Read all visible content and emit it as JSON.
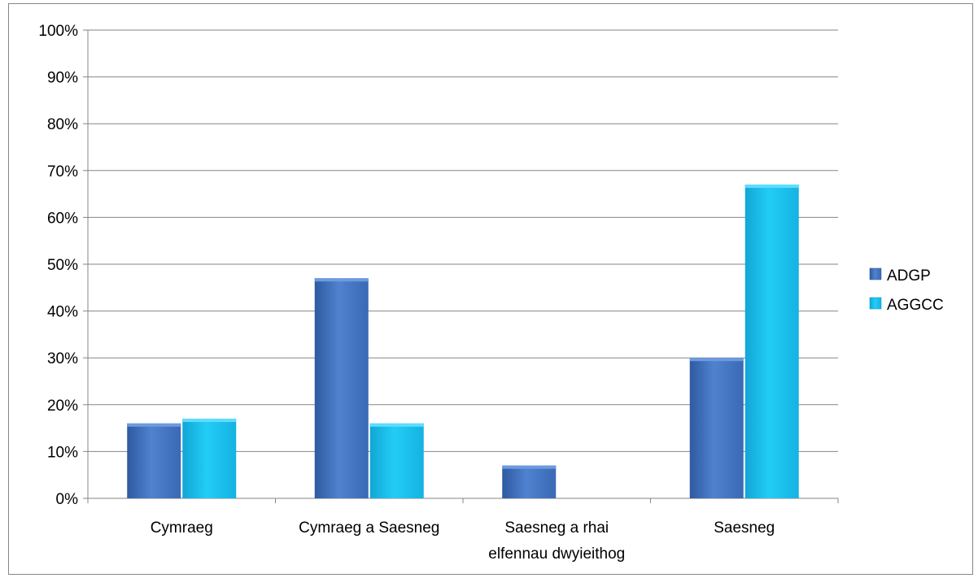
{
  "chart_data": {
    "type": "bar",
    "categories": [
      [
        "Cymraeg"
      ],
      [
        "Cymraeg a Saesneg"
      ],
      [
        "Saesneg a  rhai",
        "elfennau dwyieithog"
      ],
      [
        "Saesneg"
      ]
    ],
    "series": [
      {
        "name": "ADGP",
        "values": [
          16,
          47,
          7,
          30
        ]
      },
      {
        "name": "AGGCC",
        "values": [
          17,
          16,
          0,
          67
        ]
      }
    ],
    "ylim": [
      0,
      100
    ],
    "y_ticks": [
      "0%",
      "10%",
      "20%",
      "30%",
      "40%",
      "50%",
      "60%",
      "70%",
      "80%",
      "90%",
      "100%"
    ],
    "grid": true,
    "legend_position": "right"
  },
  "colors": {
    "ADGP": "#4a7cc9",
    "ADGP_dark": "#2d5596",
    "AGGCC": "#1ec0ee",
    "AGGCC_dark": "#0f96c4",
    "grid": "#868686"
  }
}
